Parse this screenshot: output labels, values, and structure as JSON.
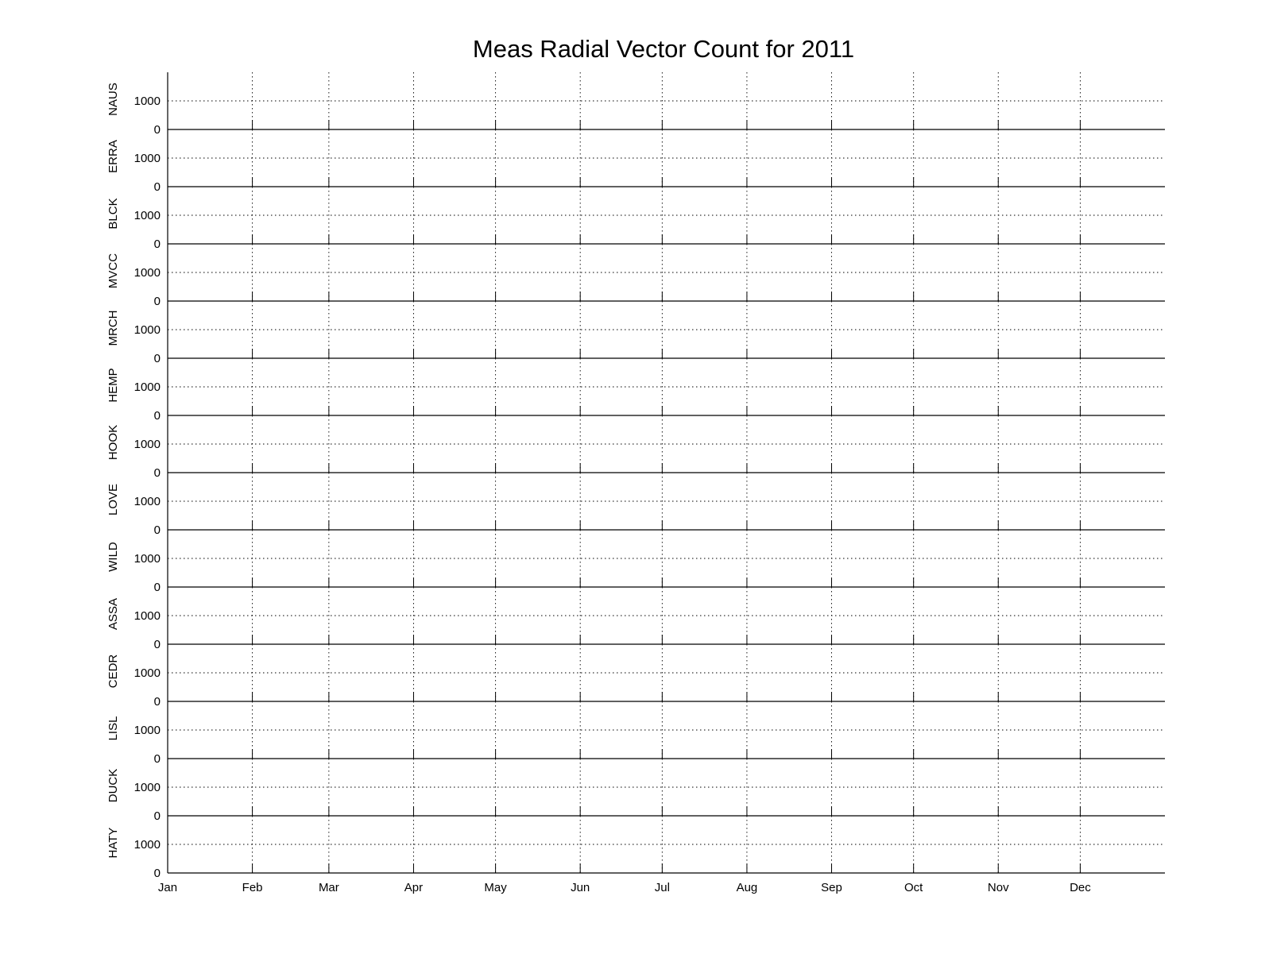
{
  "chart_data": {
    "type": "line",
    "title": "Meas Radial Vector Count for 2011",
    "xlabel": "",
    "ylabel": "",
    "x_ticks": [
      "Jan",
      "Feb",
      "Mar",
      "Apr",
      "May",
      "Jun",
      "Jul",
      "Aug",
      "Sep",
      "Oct",
      "Nov",
      "Dec"
    ],
    "x_tick_days": [
      0,
      31,
      59,
      90,
      120,
      151,
      181,
      212,
      243,
      273,
      304,
      334
    ],
    "xlim_days": [
      0,
      365
    ],
    "y_ticks": [
      0,
      1000
    ],
    "ylim": [
      0,
      2000
    ],
    "grid": true,
    "panels": [
      {
        "station": "NAUS",
        "values": []
      },
      {
        "station": "ERRA",
        "values": []
      },
      {
        "station": "BLCK",
        "values": []
      },
      {
        "station": "MVCC",
        "values": []
      },
      {
        "station": "MRCH",
        "values": []
      },
      {
        "station": "HEMP",
        "values": []
      },
      {
        "station": "HOOK",
        "values": []
      },
      {
        "station": "LOVE",
        "values": []
      },
      {
        "station": "WILD",
        "values": []
      },
      {
        "station": "ASSA",
        "values": []
      },
      {
        "station": "CEDR",
        "values": []
      },
      {
        "station": "LISL",
        "values": []
      },
      {
        "station": "DUCK",
        "values": []
      },
      {
        "station": "HATY",
        "values": []
      }
    ]
  }
}
